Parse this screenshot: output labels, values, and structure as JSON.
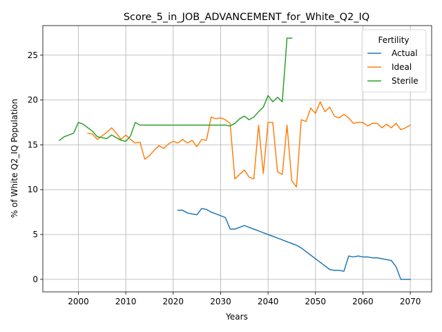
{
  "chart_data": {
    "type": "line",
    "title": "Score_5_in_JOB_ADVANCEMENT_for_White_Q2_IQ",
    "xlabel": "Years",
    "ylabel": "% of White Q2_IQ Population",
    "xlim": [
      1992.5,
      2074.5
    ],
    "ylim": [
      -1.4,
      28.3
    ],
    "xticks": [
      2000,
      2010,
      2020,
      2030,
      2040,
      2050,
      2060,
      2070
    ],
    "yticks": [
      0,
      5,
      10,
      15,
      20,
      25
    ],
    "grid": true,
    "legend": {
      "title": "Fertility",
      "placement": "top-right"
    },
    "series": [
      {
        "name": "Actual",
        "color": "#1f77b4",
        "points": [
          [
            2021,
            7.7
          ],
          [
            2022,
            7.7
          ],
          [
            2023,
            7.4
          ],
          [
            2024,
            7.3
          ],
          [
            2025,
            7.2
          ],
          [
            2026,
            7.9
          ],
          [
            2027,
            7.8
          ],
          [
            2028,
            7.5
          ],
          [
            2029,
            7.3
          ],
          [
            2030,
            7.1
          ],
          [
            2031,
            6.9
          ],
          [
            2032,
            5.6
          ],
          [
            2033,
            5.6
          ],
          [
            2034,
            5.8
          ],
          [
            2035,
            6.0
          ],
          [
            2036,
            5.8
          ],
          [
            2037,
            5.6
          ],
          [
            2038,
            5.4
          ],
          [
            2039,
            5.2
          ],
          [
            2040,
            5.0
          ],
          [
            2041,
            4.8
          ],
          [
            2042,
            4.6
          ],
          [
            2043,
            4.4
          ],
          [
            2044,
            4.2
          ],
          [
            2045,
            4.0
          ],
          [
            2046,
            3.8
          ],
          [
            2047,
            3.5
          ],
          [
            2048,
            3.1
          ],
          [
            2049,
            2.7
          ],
          [
            2050,
            2.3
          ],
          [
            2051,
            1.9
          ],
          [
            2052,
            1.5
          ],
          [
            2053,
            1.1
          ],
          [
            2054,
            1.0
          ],
          [
            2055,
            1.0
          ],
          [
            2056,
            0.9
          ],
          [
            2057,
            2.6
          ],
          [
            2058,
            2.5
          ],
          [
            2059,
            2.6
          ],
          [
            2060,
            2.5
          ],
          [
            2061,
            2.5
          ],
          [
            2062,
            2.4
          ],
          [
            2063,
            2.4
          ],
          [
            2064,
            2.3
          ],
          [
            2065,
            2.2
          ],
          [
            2066,
            2.1
          ],
          [
            2067,
            1.4
          ],
          [
            2068,
            0.0
          ],
          [
            2069,
            0.0
          ],
          [
            2070,
            0.0
          ]
        ]
      },
      {
        "name": "Ideal",
        "color": "#ff7f0e",
        "points": [
          [
            2002,
            16.3
          ],
          [
            2003,
            16.2
          ],
          [
            2004,
            15.6
          ],
          [
            2005,
            16.0
          ],
          [
            2006,
            16.4
          ],
          [
            2007,
            16.9
          ],
          [
            2008,
            16.3
          ],
          [
            2009,
            15.6
          ],
          [
            2010,
            16.1
          ],
          [
            2011,
            15.6
          ],
          [
            2012,
            15.2
          ],
          [
            2013,
            15.3
          ],
          [
            2014,
            13.4
          ],
          [
            2015,
            13.8
          ],
          [
            2016,
            14.4
          ],
          [
            2017,
            14.9
          ],
          [
            2018,
            14.6
          ],
          [
            2019,
            15.1
          ],
          [
            2020,
            15.4
          ],
          [
            2021,
            15.2
          ],
          [
            2022,
            15.6
          ],
          [
            2023,
            15.2
          ],
          [
            2024,
            15.5
          ],
          [
            2025,
            14.8
          ],
          [
            2026,
            15.6
          ],
          [
            2027,
            15.5
          ],
          [
            2028,
            18.1
          ],
          [
            2029,
            17.9
          ],
          [
            2030,
            18.0
          ],
          [
            2031,
            17.8
          ],
          [
            2032,
            17.4
          ],
          [
            2033,
            11.2
          ],
          [
            2034,
            11.7
          ],
          [
            2035,
            12.2
          ],
          [
            2036,
            11.4
          ],
          [
            2037,
            11.2
          ],
          [
            2038,
            17.2
          ],
          [
            2039,
            11.8
          ],
          [
            2040,
            17.5
          ],
          [
            2041,
            17.5
          ],
          [
            2042,
            12.0
          ],
          [
            2043,
            11.7
          ],
          [
            2044,
            17.2
          ],
          [
            2045,
            11.0
          ],
          [
            2046,
            10.3
          ],
          [
            2047,
            17.8
          ],
          [
            2048,
            17.6
          ],
          [
            2049,
            19.1
          ],
          [
            2050,
            18.5
          ],
          [
            2051,
            19.8
          ],
          [
            2052,
            18.7
          ],
          [
            2053,
            19.2
          ],
          [
            2054,
            18.2
          ],
          [
            2055,
            18.0
          ],
          [
            2056,
            18.4
          ],
          [
            2057,
            18.0
          ],
          [
            2058,
            17.4
          ],
          [
            2059,
            17.5
          ],
          [
            2060,
            17.5
          ],
          [
            2061,
            17.1
          ],
          [
            2062,
            17.4
          ],
          [
            2063,
            17.4
          ],
          [
            2064,
            16.9
          ],
          [
            2065,
            17.3
          ],
          [
            2066,
            16.9
          ],
          [
            2067,
            17.4
          ],
          [
            2068,
            16.7
          ],
          [
            2069,
            16.9
          ],
          [
            2070,
            17.2
          ]
        ]
      },
      {
        "name": "Sterile",
        "color": "#2ca02c",
        "points": [
          [
            1996,
            15.5
          ],
          [
            1997,
            15.9
          ],
          [
            1998,
            16.1
          ],
          [
            1999,
            16.3
          ],
          [
            2000,
            17.5
          ],
          [
            2001,
            17.3
          ],
          [
            2002,
            16.9
          ],
          [
            2003,
            16.5
          ],
          [
            2004,
            15.9
          ],
          [
            2005,
            15.8
          ],
          [
            2006,
            15.7
          ],
          [
            2007,
            16.1
          ],
          [
            2008,
            15.8
          ],
          [
            2009,
            15.5
          ],
          [
            2010,
            15.4
          ],
          [
            2011,
            16.0
          ],
          [
            2012,
            17.5
          ],
          [
            2013,
            17.2
          ],
          [
            2014,
            17.2
          ],
          [
            2015,
            17.2
          ],
          [
            2016,
            17.2
          ],
          [
            2017,
            17.2
          ],
          [
            2018,
            17.2
          ],
          [
            2019,
            17.2
          ],
          [
            2020,
            17.2
          ],
          [
            2021,
            17.2
          ],
          [
            2022,
            17.2
          ],
          [
            2023,
            17.2
          ],
          [
            2024,
            17.2
          ],
          [
            2025,
            17.2
          ],
          [
            2026,
            17.2
          ],
          [
            2027,
            17.2
          ],
          [
            2028,
            17.2
          ],
          [
            2029,
            17.2
          ],
          [
            2030,
            17.2
          ],
          [
            2031,
            17.2
          ],
          [
            2032,
            17.1
          ],
          [
            2033,
            17.4
          ],
          [
            2034,
            17.9
          ],
          [
            2035,
            18.2
          ],
          [
            2036,
            17.8
          ],
          [
            2037,
            18.1
          ],
          [
            2038,
            18.7
          ],
          [
            2039,
            19.2
          ],
          [
            2040,
            20.5
          ],
          [
            2041,
            19.8
          ],
          [
            2042,
            20.3
          ],
          [
            2043,
            19.8
          ],
          [
            2044,
            26.9
          ],
          [
            2045,
            26.9
          ]
        ]
      }
    ]
  }
}
